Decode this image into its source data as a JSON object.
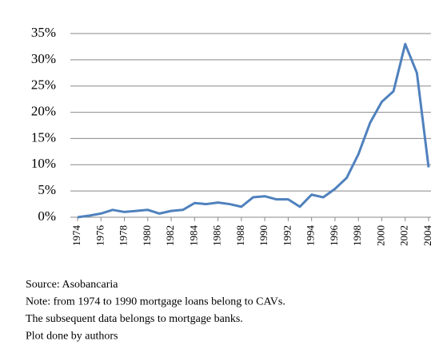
{
  "chart_data": {
    "type": "line",
    "x": [
      1974,
      1975,
      1976,
      1977,
      1978,
      1979,
      1980,
      1981,
      1982,
      1983,
      1984,
      1985,
      1986,
      1987,
      1988,
      1989,
      1990,
      1991,
      1992,
      1993,
      1994,
      1995,
      1996,
      1997,
      1998,
      1999,
      2000,
      2001,
      2002,
      2003,
      2004
    ],
    "series": [
      {
        "color": "#4f81bd",
        "values": [
          0,
          0.3,
          0.7,
          1.4,
          1.0,
          1.2,
          1.4,
          0.7,
          1.2,
          1.4,
          2.7,
          2.5,
          2.8,
          2.5,
          2.0,
          3.8,
          4.0,
          3.4,
          3.4,
          2.0,
          4.3,
          3.8,
          5.4,
          7.5,
          12,
          18,
          22,
          24,
          33,
          27.5,
          9.5
        ]
      }
    ],
    "xlim": [
      1974,
      2004
    ],
    "xticks": [
      1974,
      1976,
      1978,
      1980,
      1982,
      1984,
      1986,
      1988,
      1990,
      1992,
      1994,
      1996,
      1998,
      2000,
      2002,
      2004
    ],
    "ylim": [
      0,
      35
    ],
    "yticks": [
      {
        "value": 0,
        "label": "0%"
      },
      {
        "value": 5,
        "label": "5%"
      },
      {
        "value": 10,
        "label": "10%"
      },
      {
        "value": 15,
        "label": "15%"
      },
      {
        "value": 20,
        "label": "20%"
      },
      {
        "value": 25,
        "label": "25%"
      },
      {
        "value": 30,
        "label": "30%"
      },
      {
        "value": 35,
        "label": "35%"
      }
    ],
    "grid": true,
    "notes": [
      "Source:  Asobancaria",
      "Note: from 1974 to 1990 mortgage loans belong to CAVs.",
      "The subsequent data belongs to mortgage banks.",
      "Plot done by authors"
    ]
  }
}
